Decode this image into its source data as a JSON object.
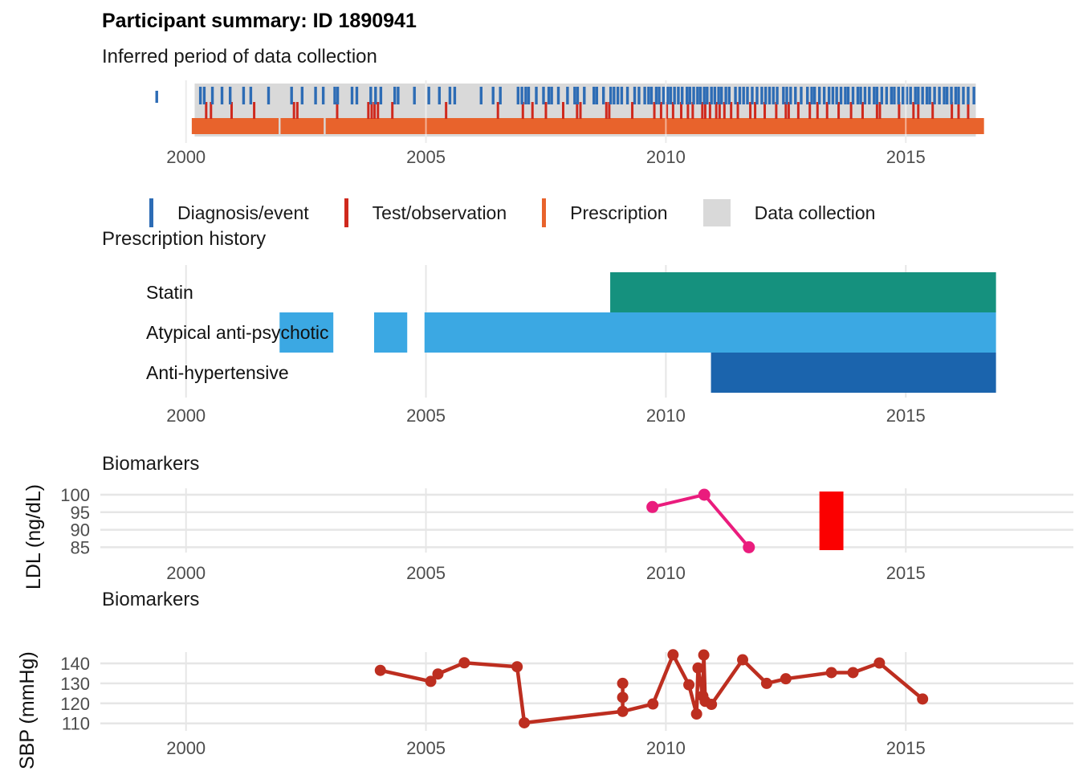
{
  "page": {
    "title": "Participant summary: ID 1890941"
  },
  "legend": {
    "items": [
      {
        "label": "Diagnosis/event",
        "shape": "line",
        "color": "#2d6cb5"
      },
      {
        "label": "Test/observation",
        "shape": "line",
        "color": "#cf291d"
      },
      {
        "label": "Prescription",
        "shape": "line",
        "color": "#e8632c"
      },
      {
        "label": "Data collection",
        "shape": "rect",
        "color": "#d9d9d9"
      }
    ]
  },
  "chart_data": [
    {
      "type": "timeline",
      "title": "Inferred period of data collection",
      "x_ticks": [
        2000,
        2005,
        2010,
        2015
      ],
      "colors": {
        "diagnosis": "#2d6cb5",
        "test": "#cf291d",
        "prescription": "#e8632c",
        "collection": "#d9d9d9"
      },
      "collection_period": {
        "start": 2000.18,
        "end": 2016.46
      },
      "isolated_diagnosis_tick": 1999.39,
      "prescription_coverage": [
        [
          2000.12,
          2001.93
        ],
        [
          2001.97,
          2002.87
        ],
        [
          2002.91,
          2016.63
        ]
      ],
      "diagnosis_event_dates": [
        2000.3,
        2000.38,
        2000.55,
        2000.75,
        2000.92,
        2001.2,
        2001.35,
        2001.72,
        2002.2,
        2002.42,
        2002.7,
        2002.86,
        2003.1,
        2003.16,
        2003.46,
        2003.56,
        2003.85,
        2003.95,
        2004.06,
        2004.35,
        2004.42,
        2004.76,
        2005.06,
        2005.28,
        2005.5,
        2005.6,
        2006.15,
        2006.4,
        2006.55,
        2006.92,
        2007.0,
        2007.08,
        2007.14,
        2007.3,
        2007.45,
        2007.56,
        2007.62,
        2007.76,
        2007.95,
        2008.1,
        2008.16,
        2008.3,
        2008.5,
        2008.56,
        2008.7,
        2008.85,
        2008.92,
        2009.0,
        2009.08,
        2009.2,
        2009.35,
        2009.44,
        2009.56,
        2009.64,
        2009.7,
        2009.8,
        2009.86,
        2009.95,
        2010.04,
        2010.1,
        2010.18,
        2010.26,
        2010.34,
        2010.44,
        2010.5,
        2010.58,
        2010.66,
        2010.72,
        2010.8,
        2010.86,
        2010.95,
        2011.02,
        2011.1,
        2011.16,
        2011.25,
        2011.32,
        2011.45,
        2011.54,
        2011.62,
        2011.7,
        2011.8,
        2011.9,
        2012.0,
        2012.08,
        2012.16,
        2012.24,
        2012.32,
        2012.45,
        2012.52,
        2012.6,
        2012.7,
        2012.82,
        2012.95,
        2013.04,
        2013.1,
        2013.2,
        2013.3,
        2013.4,
        2013.48,
        2013.56,
        2013.65,
        2013.74,
        2013.8,
        2013.9,
        2014.0,
        2014.06,
        2014.15,
        2014.24,
        2014.34,
        2014.4,
        2014.5,
        2014.6,
        2014.7,
        2014.76,
        2014.85,
        2014.94,
        2015.02,
        2015.1,
        2015.2,
        2015.26,
        2015.35,
        2015.44,
        2015.5,
        2015.6,
        2015.7,
        2015.8,
        2015.86,
        2015.95,
        2016.04,
        2016.1,
        2016.2,
        2016.3,
        2016.42
      ],
      "test_observation_dates": [
        2000.42,
        2000.52,
        2000.95,
        2001.42,
        2002.25,
        2002.32,
        2003.15,
        2003.8,
        2003.87,
        2003.93,
        2004.0,
        2004.3,
        2005.42,
        2006.5,
        2007.02,
        2007.22,
        2007.5,
        2007.86,
        2008.15,
        2008.22,
        2008.76,
        2008.82,
        2009.3,
        2009.76,
        2009.9,
        2010.02,
        2010.15,
        2010.32,
        2010.46,
        2010.56,
        2010.76,
        2010.82,
        2010.92,
        2011.05,
        2011.12,
        2011.22,
        2011.36,
        2011.5,
        2011.76,
        2011.86,
        2012.06,
        2012.3,
        2012.5,
        2012.56,
        2012.76,
        2013.0,
        2013.16,
        2013.36,
        2013.6,
        2013.86,
        2014.1,
        2014.4,
        2014.46,
        2014.86,
        2015.16,
        2015.26,
        2015.56,
        2015.96,
        2016.1,
        2016.3
      ],
      "legend_labels": [
        "Diagnosis/event",
        "Test/observation",
        "Prescription",
        "Data collection"
      ]
    },
    {
      "type": "gantt",
      "title": "Prescription history",
      "x_ticks": [
        2000,
        2005,
        2010,
        2015
      ],
      "rows": [
        {
          "label": "Statin",
          "color": "#15917e",
          "segments": [
            [
              2008.84,
              2016.88
            ]
          ]
        },
        {
          "label": "Atypical anti-psychotic",
          "color": "#3ba8e3",
          "segments": [
            [
              2001.95,
              2003.07
            ],
            [
              2003.92,
              2004.61
            ],
            [
              2004.97,
              2016.88
            ]
          ]
        },
        {
          "label": "Anti-hypertensive",
          "color": "#1b64ad",
          "segments": [
            [
              2010.94,
              2016.88
            ]
          ]
        }
      ]
    },
    {
      "type": "line",
      "title": "Biomarkers",
      "ylabel": "LDL (ng/dL)",
      "x_ticks": [
        2000,
        2005,
        2010,
        2015
      ],
      "y_ticks": [
        100,
        95,
        90,
        85
      ],
      "color": "#ea1c7d",
      "points": [
        [
          2009.72,
          96.5
        ],
        [
          2010.8,
          100
        ],
        [
          2011.73,
          85
        ]
      ],
      "annotation_rect": {
        "start": 2013.2,
        "end": 2013.7,
        "color": "#fb0000"
      }
    },
    {
      "type": "line",
      "title": "Biomarkers",
      "ylabel": "SBP (mmHg)",
      "x_ticks": [
        2000,
        2005,
        2010,
        2015
      ],
      "y_ticks": [
        140,
        130,
        120,
        110
      ],
      "color": "#bd2e20",
      "points": [
        [
          2004.05,
          136.5
        ],
        [
          2005.1,
          131
        ],
        [
          2005.25,
          134.7
        ],
        [
          2005.8,
          140.3
        ],
        [
          2006.9,
          138.3
        ],
        [
          2007.05,
          110.3
        ],
        [
          2009.1,
          116
        ],
        [
          2009.73,
          119.7
        ],
        [
          2010.15,
          144.3
        ],
        [
          2010.48,
          129.3
        ],
        [
          2010.64,
          114.7
        ],
        [
          2010.67,
          137.7
        ],
        [
          2010.77,
          123.7
        ],
        [
          2010.79,
          144.2
        ],
        [
          2010.82,
          121
        ],
        [
          2010.95,
          119.5
        ],
        [
          2011.6,
          141.8
        ],
        [
          2012.1,
          130
        ],
        [
          2012.5,
          132.3
        ],
        [
          2013.45,
          135.4
        ],
        [
          2013.9,
          135.4
        ],
        [
          2014.45,
          140.2
        ],
        [
          2015.35,
          122.2
        ]
      ],
      "same_day_extra_points": [
        [
          2009.1,
          123
        ],
        [
          2009.1,
          130
        ]
      ]
    }
  ]
}
